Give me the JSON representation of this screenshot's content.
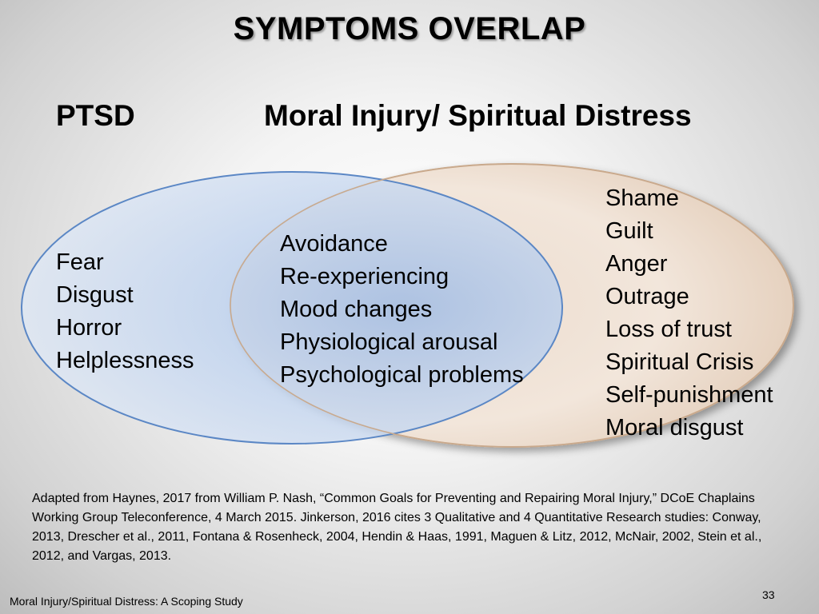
{
  "slide": {
    "title": "SYMPTOMS OVERLAP",
    "footer": "Moral Injury/Spiritual Distress: A Scoping Study",
    "page_number": "33"
  },
  "venn": {
    "left": {
      "label": "PTSD",
      "color": "#5b87c5",
      "items": [
        "Fear",
        "Disgust",
        "Horror",
        "Helplessness"
      ]
    },
    "right": {
      "label": "Moral Injury/ Spiritual Distress",
      "color": "#dcc1a8",
      "items": [
        "Shame",
        "Guilt",
        "Anger",
        "Outrage",
        "Loss of trust",
        "Spiritual Crisis",
        "Self-punishment",
        "Moral disgust"
      ]
    },
    "overlap": {
      "items": [
        "Avoidance",
        "Re-experiencing",
        "Mood changes",
        "Physiological arousal",
        "Psychological problems"
      ]
    }
  },
  "citation": "Adapted from Haynes, 2017 from William P. Nash, “Common Goals for Preventing and Repairing Moral Injury,” DCoE Chaplains Working Group Teleconference, 4 March 2015.  Jinkerson, 2016 cites 3 Qualitative and 4 Quantitative Research studies:  Conway, 2013, Drescher et al., 2011, Fontana & Rosenheck, 2004, Hendin & Haas, 1991, Maguen & Litz, 2012, McNair, 2002, Stein et al., 2012, and Vargas, 2013."
}
